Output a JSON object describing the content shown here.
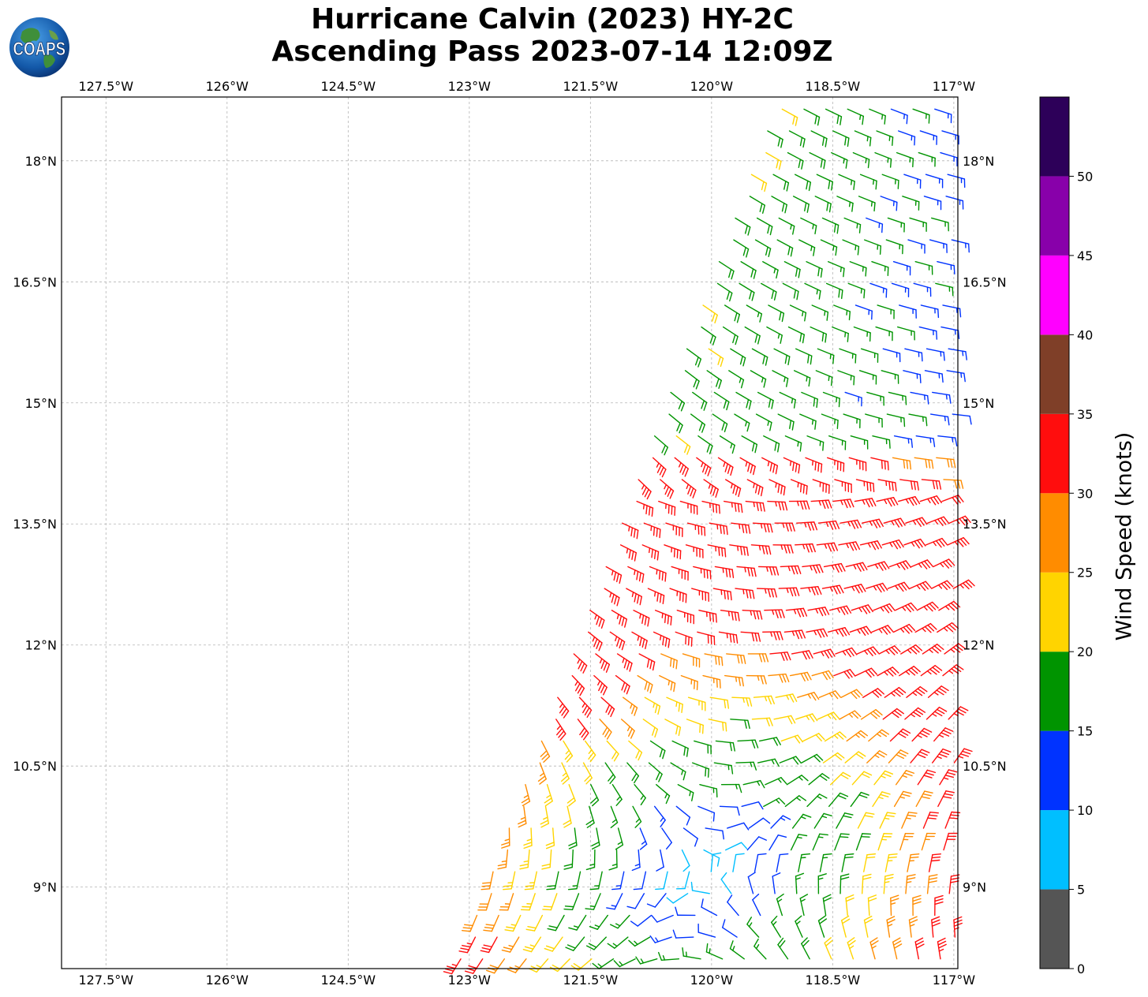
{
  "title": {
    "line1": "Hurricane Calvin (2023) HY-2C",
    "line2": "Ascending Pass 2023-07-14 12:09Z"
  },
  "logo": {
    "name": "COAPS",
    "icon": "coaps-globe-logo"
  },
  "chart_data": {
    "type": "wind-barb-map",
    "lon_ticks": [
      "127.5°W",
      "126°W",
      "124.5°W",
      "123°W",
      "121.5°W",
      "120°W",
      "118.5°W",
      "117°W"
    ],
    "lat_ticks": [
      "18°N",
      "16.5°N",
      "15°N",
      "13.5°N",
      "12°N",
      "10.5°N",
      "9°N"
    ],
    "lon_range": [
      -128.05,
      -116.95
    ],
    "lat_range": [
      7.99,
      18.79
    ],
    "grid": true,
    "colorbar": {
      "label": "Wind Speed (knots)",
      "ticks": [
        "0",
        "5",
        "10",
        "15",
        "20",
        "25",
        "30",
        "35",
        "40",
        "45",
        "50"
      ],
      "bins": [
        {
          "min": 0,
          "max": 5,
          "color": "#555555"
        },
        {
          "min": 5,
          "max": 10,
          "color": "#00bfff"
        },
        {
          "min": 10,
          "max": 15,
          "color": "#0033ff"
        },
        {
          "min": 15,
          "max": 20,
          "color": "#009400"
        },
        {
          "min": 20,
          "max": 25,
          "color": "#ffd400"
        },
        {
          "min": 25,
          "max": 30,
          "color": "#ff8c00"
        },
        {
          "min": 30,
          "max": 35,
          "color": "#ff0d0d"
        },
        {
          "min": 35,
          "max": 40,
          "color": "#7f3f28"
        },
        {
          "min": 40,
          "max": 45,
          "color": "#ff00ff"
        },
        {
          "min": 45,
          "max": 50,
          "color": "#8800aa"
        },
        {
          "min": 50,
          "max": 55,
          "color": "#2d0059"
        }
      ]
    },
    "swath": {
      "lat_bottom": 7.99,
      "lon_left_at_bottom": -123.25,
      "lat_top": 18.79,
      "lon_left_at_top": -119.25,
      "lon_right": -117.05
    },
    "storm_center": {
      "lon": -120.1,
      "lat": 9.2
    }
  }
}
